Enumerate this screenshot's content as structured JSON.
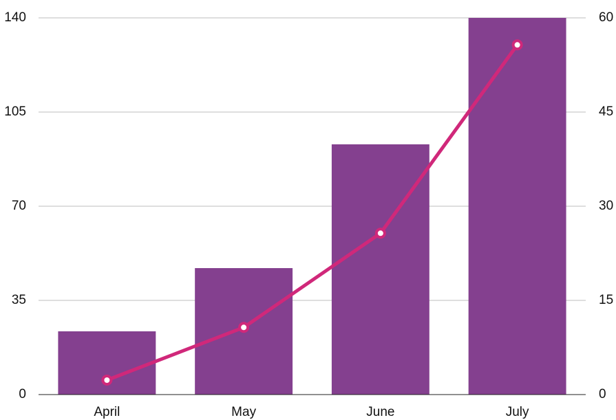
{
  "chart_data": {
    "type": "bar",
    "categories": [
      "April",
      "May",
      "June",
      "July"
    ],
    "series": [
      {
        "color": "#84408f",
        "values": [
          23.5,
          47,
          93,
          140
        ]
      },
      {
        "color": "#d0287a",
        "axis": "y2",
        "values": [
          2.3,
          10.7,
          25.7,
          55.7
        ]
      }
    ],
    "ylim": [
      0,
      140
    ],
    "yticks": [
      0,
      35,
      70,
      105,
      140
    ],
    "y2lim": [
      0,
      60
    ],
    "y2ticks": [
      0,
      15,
      30,
      45,
      60
    ],
    "grid": true
  }
}
